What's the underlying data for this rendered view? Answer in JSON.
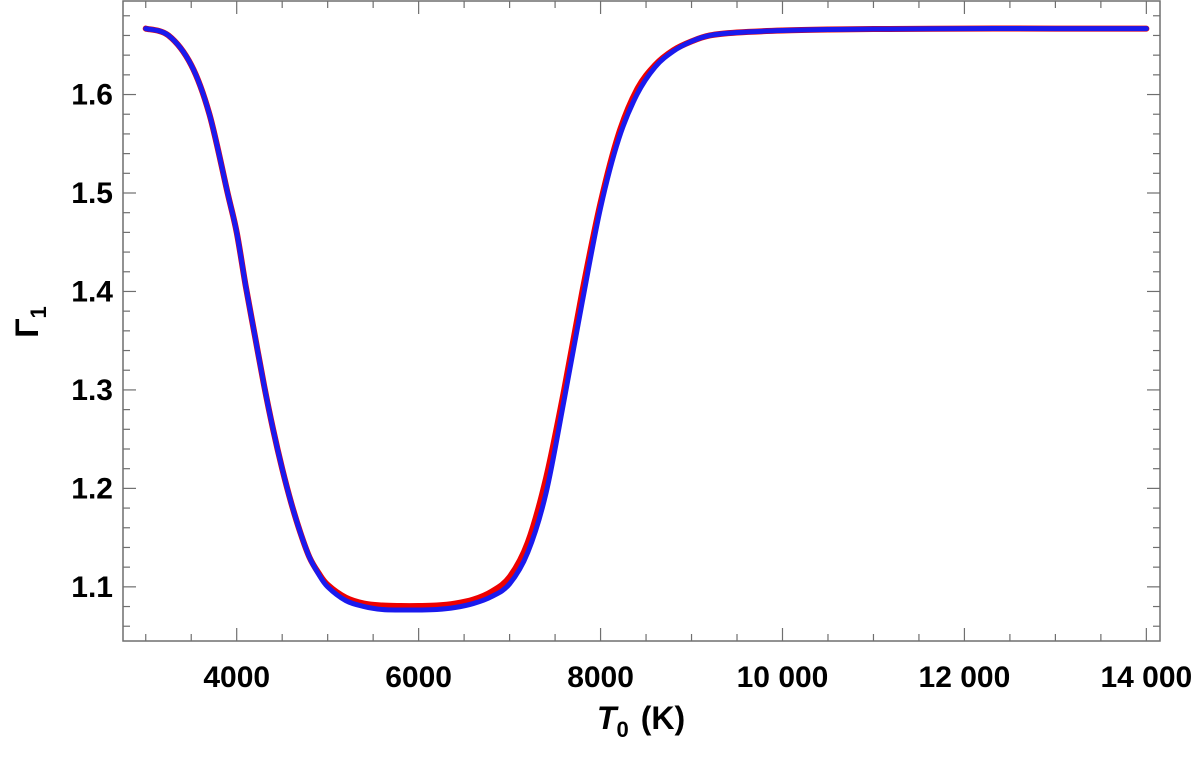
{
  "chart_data": {
    "type": "line",
    "title": "",
    "xlabel": {
      "symbol": "T",
      "subscript": "0",
      "unit": "(K)"
    },
    "ylabel": {
      "symbol": "Γ",
      "subscript": "1"
    },
    "xlim": [
      2750,
      14150
    ],
    "ylim": [
      1.045,
      1.695
    ],
    "x_ticks": [
      4000,
      6000,
      8000,
      10000,
      12000,
      14000
    ],
    "x_tick_labels": [
      "4000",
      "6000",
      "8000",
      "10 000",
      "12 000",
      "14 000"
    ],
    "y_ticks": [
      1.1,
      1.2,
      1.3,
      1.4,
      1.5,
      1.6
    ],
    "y_tick_labels": [
      "1.1",
      "1.2",
      "1.3",
      "1.4",
      "1.5",
      "1.6"
    ],
    "x_minor_step": 500,
    "y_minor_step": 0.02,
    "grid": false,
    "legend": "none",
    "series": [
      {
        "color": "#ee0000",
        "x": [
          3000,
          3250,
          3500,
          3700,
          3900,
          4000,
          4100,
          4200,
          4300,
          4400,
          4500,
          4600,
          4700,
          4800,
          4900,
          5000,
          5200,
          5400,
          5600,
          5800,
          6000,
          6200,
          6400,
          6600,
          6800,
          7000,
          7200,
          7400,
          7600,
          7800,
          8000,
          8200,
          8400,
          8600,
          8800,
          9000,
          9200,
          9500,
          10000,
          10500,
          11000,
          12000,
          13000,
          14000
        ],
        "y": [
          1.667,
          1.66,
          1.63,
          1.58,
          1.5,
          1.46,
          1.405,
          1.355,
          1.305,
          1.26,
          1.22,
          1.185,
          1.155,
          1.13,
          1.114,
          1.102,
          1.089,
          1.083,
          1.081,
          1.0805,
          1.0805,
          1.081,
          1.083,
          1.087,
          1.095,
          1.11,
          1.145,
          1.21,
          1.3,
          1.4,
          1.49,
          1.56,
          1.605,
          1.63,
          1.645,
          1.654,
          1.66,
          1.663,
          1.665,
          1.666,
          1.6665,
          1.667,
          1.667,
          1.667
        ]
      },
      {
        "color": "#1a1aee",
        "x": [
          3000,
          3250,
          3500,
          3700,
          3900,
          4000,
          4100,
          4200,
          4300,
          4400,
          4500,
          4600,
          4700,
          4800,
          4900,
          5000,
          5200,
          5400,
          5600,
          5800,
          6000,
          6200,
          6400,
          6600,
          6800,
          7000,
          7200,
          7400,
          7600,
          7800,
          8000,
          8200,
          8400,
          8600,
          8800,
          9000,
          9200,
          9500,
          10000,
          10500,
          11000,
          12000,
          13000,
          14000
        ],
        "y": [
          1.667,
          1.66,
          1.63,
          1.58,
          1.5,
          1.46,
          1.405,
          1.355,
          1.305,
          1.26,
          1.22,
          1.185,
          1.155,
          1.13,
          1.113,
          1.1,
          1.086,
          1.08,
          1.077,
          1.0765,
          1.0765,
          1.077,
          1.079,
          1.083,
          1.09,
          1.103,
          1.135,
          1.195,
          1.29,
          1.39,
          1.485,
          1.555,
          1.6,
          1.628,
          1.644,
          1.654,
          1.66,
          1.663,
          1.665,
          1.666,
          1.6665,
          1.667,
          1.667,
          1.667
        ]
      }
    ]
  }
}
